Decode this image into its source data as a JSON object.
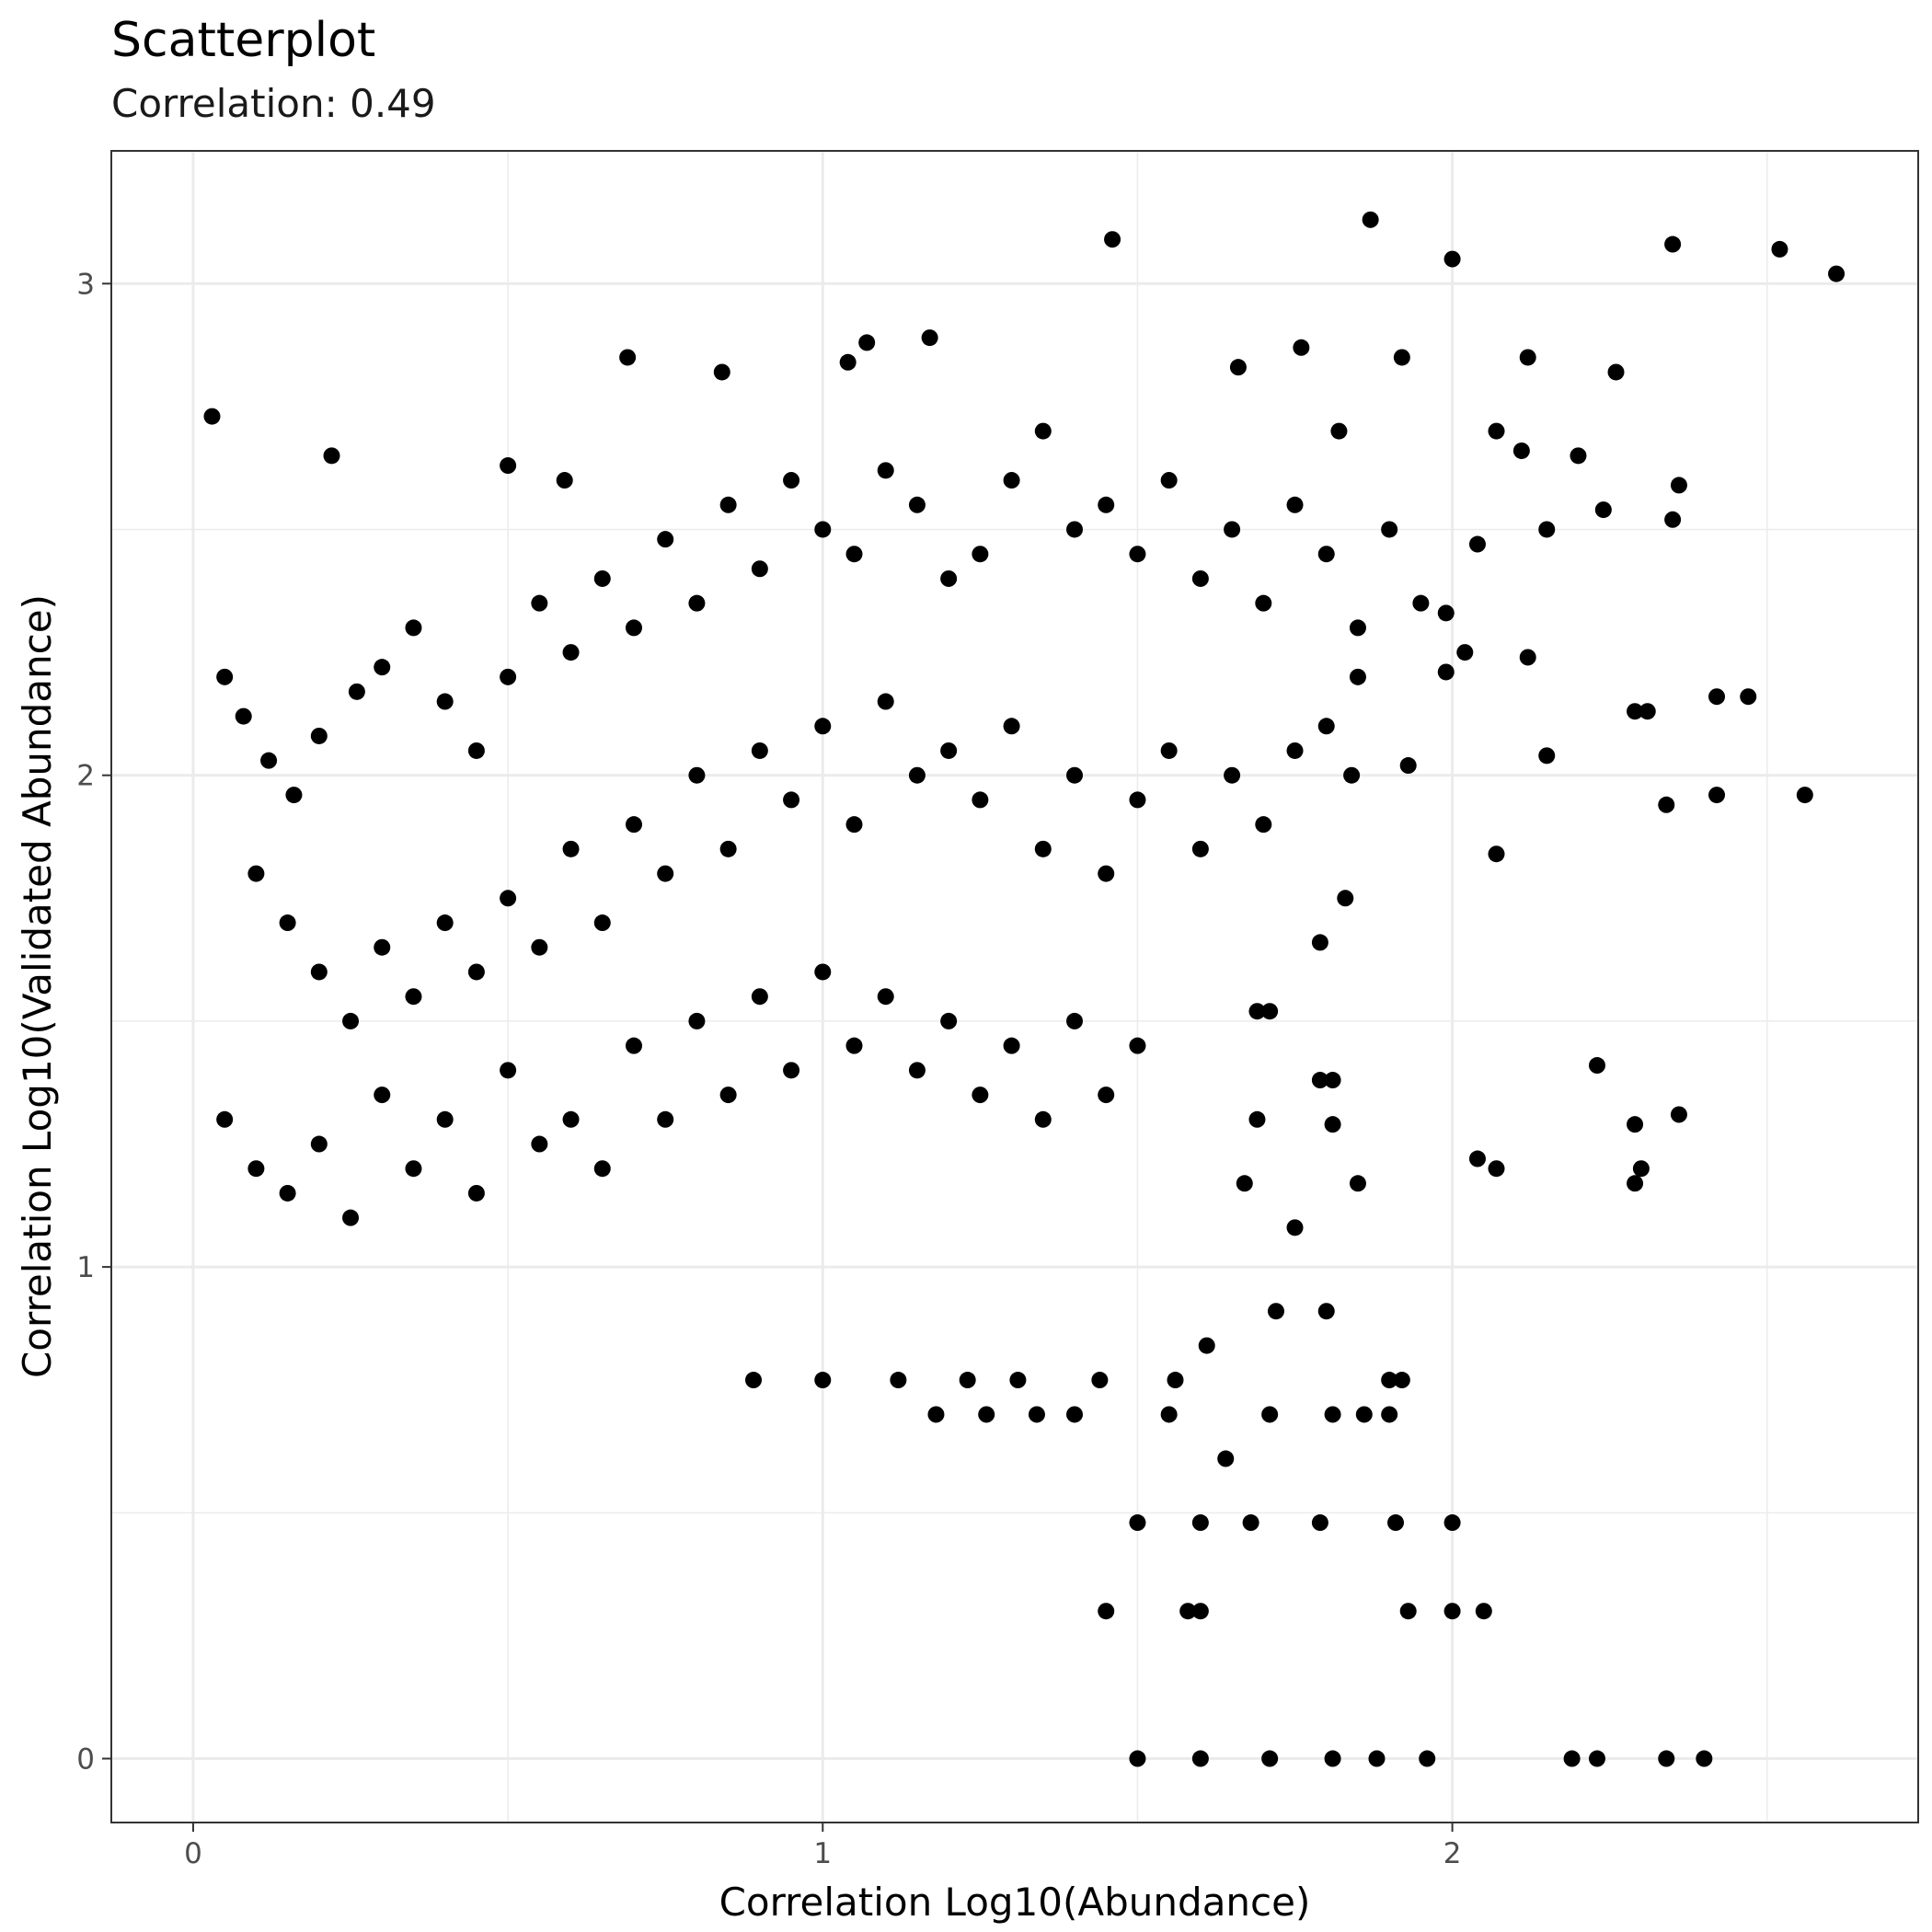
{
  "chart_data": {
    "type": "scatter",
    "title": "Scatterplot",
    "subtitle": "Correlation: 0.49",
    "xlabel": "Correlation Log10(Abundance)",
    "ylabel": "Correlation Log10(Validated Abundance)",
    "xlim": [
      -0.13,
      2.74
    ],
    "ylim": [
      -0.13,
      3.27
    ],
    "x_ticks": [
      0,
      1,
      2
    ],
    "y_ticks": [
      0,
      1,
      2,
      3
    ],
    "x_tick_labels": [
      "0",
      "1",
      "2"
    ],
    "y_tick_labels": [
      "0",
      "1",
      "2",
      "3"
    ],
    "grid": true,
    "legend": "none",
    "point_color": "#000000",
    "points_note": "Representative subset of points read from the figure; the dense central cloud and discrete low-count rows are sampled.",
    "points": [
      [
        1.46,
        3.09
      ],
      [
        1.87,
        3.13
      ],
      [
        2.0,
        3.05
      ],
      [
        2.35,
        3.08
      ],
      [
        2.52,
        3.07
      ],
      [
        2.61,
        3.02
      ],
      [
        0.03,
        2.73
      ],
      [
        0.22,
        2.65
      ],
      [
        0.69,
        2.85
      ],
      [
        0.84,
        2.82
      ],
      [
        1.07,
        2.88
      ],
      [
        1.17,
        2.89
      ],
      [
        1.76,
        2.87
      ],
      [
        1.92,
        2.85
      ],
      [
        2.12,
        2.85
      ],
      [
        2.26,
        2.82
      ],
      [
        1.66,
        2.83
      ],
      [
        1.04,
        2.84
      ],
      [
        0.59,
        2.6
      ],
      [
        0.5,
        2.63
      ],
      [
        1.82,
        2.7
      ],
      [
        2.07,
        2.7
      ],
      [
        2.11,
        2.66
      ],
      [
        2.2,
        2.65
      ],
      [
        2.36,
        2.59
      ],
      [
        2.35,
        2.52
      ],
      [
        2.15,
        2.5
      ],
      [
        2.24,
        2.54
      ],
      [
        2.04,
        2.47
      ],
      [
        1.99,
        2.33
      ],
      [
        2.02,
        2.25
      ],
      [
        1.99,
        2.21
      ],
      [
        2.12,
        2.24
      ],
      [
        2.29,
        2.13
      ],
      [
        2.31,
        2.13
      ],
      [
        2.42,
        2.16
      ],
      [
        2.47,
        2.16
      ],
      [
        2.15,
        2.04
      ],
      [
        2.34,
        1.94
      ],
      [
        2.42,
        1.96
      ],
      [
        2.56,
        1.96
      ],
      [
        2.07,
        1.84
      ],
      [
        1.93,
        2.02
      ],
      [
        1.84,
        2.0
      ],
      [
        1.83,
        1.75
      ],
      [
        1.79,
        1.66
      ],
      [
        2.23,
        1.41
      ],
      [
        2.29,
        1.29
      ],
      [
        2.36,
        1.31
      ],
      [
        2.3,
        1.2
      ],
      [
        2.29,
        1.17
      ],
      [
        2.04,
        1.22
      ],
      [
        2.07,
        1.2
      ],
      [
        1.85,
        1.17
      ],
      [
        1.81,
        1.29
      ],
      [
        1.79,
        1.38
      ],
      [
        1.81,
        1.38
      ],
      [
        1.71,
        1.52
      ],
      [
        1.69,
        1.52
      ],
      [
        1.69,
        1.3
      ],
      [
        1.67,
        1.17
      ],
      [
        1.75,
        1.08
      ],
      [
        1.8,
        0.91
      ],
      [
        1.72,
        0.91
      ],
      [
        1.61,
        0.84
      ],
      [
        1.56,
        0.77
      ],
      [
        1.44,
        0.77
      ],
      [
        1.31,
        0.77
      ],
      [
        1.23,
        0.77
      ],
      [
        1.12,
        0.77
      ],
      [
        1.0,
        0.77
      ],
      [
        0.89,
        0.77
      ],
      [
        1.9,
        0.77
      ],
      [
        1.92,
        0.77
      ],
      [
        1.71,
        0.7
      ],
      [
        1.81,
        0.7
      ],
      [
        1.86,
        0.7
      ],
      [
        1.9,
        0.7
      ],
      [
        1.64,
        0.61
      ],
      [
        1.55,
        0.7
      ],
      [
        1.4,
        0.7
      ],
      [
        1.34,
        0.7
      ],
      [
        1.26,
        0.7
      ],
      [
        1.18,
        0.7
      ],
      [
        2.0,
        0.48
      ],
      [
        1.91,
        0.48
      ],
      [
        1.79,
        0.48
      ],
      [
        1.68,
        0.48
      ],
      [
        1.6,
        0.48
      ],
      [
        1.5,
        0.48
      ],
      [
        1.93,
        0.3
      ],
      [
        2.0,
        0.3
      ],
      [
        2.05,
        0.3
      ],
      [
        1.6,
        0.3
      ],
      [
        1.58,
        0.3
      ],
      [
        1.45,
        0.3
      ],
      [
        2.19,
        0.0
      ],
      [
        2.23,
        0.0
      ],
      [
        2.34,
        0.0
      ],
      [
        2.4,
        0.0
      ],
      [
        1.96,
        0.0
      ],
      [
        1.88,
        0.0
      ],
      [
        1.81,
        0.0
      ],
      [
        1.71,
        0.0
      ],
      [
        1.6,
        0.0
      ],
      [
        1.5,
        0.0
      ],
      [
        0.05,
        2.2
      ],
      [
        0.08,
        2.12
      ],
      [
        0.12,
        2.03
      ],
      [
        0.16,
        1.96
      ],
      [
        0.2,
        2.08
      ],
      [
        0.26,
        2.17
      ],
      [
        0.3,
        2.22
      ],
      [
        0.35,
        2.3
      ],
      [
        0.4,
        2.15
      ],
      [
        0.45,
        2.05
      ],
      [
        0.5,
        2.2
      ],
      [
        0.55,
        2.35
      ],
      [
        0.6,
        2.25
      ],
      [
        0.65,
        2.4
      ],
      [
        0.7,
        2.3
      ],
      [
        0.75,
        2.48
      ],
      [
        0.8,
        2.35
      ],
      [
        0.85,
        2.55
      ],
      [
        0.9,
        2.42
      ],
      [
        0.95,
        2.6
      ],
      [
        1.0,
        2.5
      ],
      [
        1.05,
        2.45
      ],
      [
        1.1,
        2.62
      ],
      [
        1.15,
        2.55
      ],
      [
        1.2,
        2.4
      ],
      [
        1.25,
        2.45
      ],
      [
        1.3,
        2.6
      ],
      [
        1.35,
        2.7
      ],
      [
        1.4,
        2.5
      ],
      [
        1.45,
        2.55
      ],
      [
        1.5,
        2.45
      ],
      [
        1.55,
        2.6
      ],
      [
        1.6,
        2.4
      ],
      [
        1.65,
        2.5
      ],
      [
        1.7,
        2.35
      ],
      [
        1.75,
        2.55
      ],
      [
        1.8,
        2.45
      ],
      [
        1.85,
        2.3
      ],
      [
        1.9,
        2.5
      ],
      [
        1.95,
        2.35
      ],
      [
        0.1,
        1.8
      ],
      [
        0.15,
        1.7
      ],
      [
        0.2,
        1.6
      ],
      [
        0.25,
        1.5
      ],
      [
        0.3,
        1.65
      ],
      [
        0.35,
        1.55
      ],
      [
        0.4,
        1.7
      ],
      [
        0.45,
        1.6
      ],
      [
        0.5,
        1.75
      ],
      [
        0.55,
        1.65
      ],
      [
        0.6,
        1.85
      ],
      [
        0.65,
        1.7
      ],
      [
        0.7,
        1.9
      ],
      [
        0.75,
        1.8
      ],
      [
        0.8,
        2.0
      ],
      [
        0.85,
        1.85
      ],
      [
        0.9,
        2.05
      ],
      [
        0.95,
        1.95
      ],
      [
        1.0,
        2.1
      ],
      [
        1.05,
        1.9
      ],
      [
        1.1,
        2.15
      ],
      [
        1.15,
        2.0
      ],
      [
        1.2,
        2.05
      ],
      [
        1.25,
        1.95
      ],
      [
        1.3,
        2.1
      ],
      [
        1.35,
        1.85
      ],
      [
        1.4,
        2.0
      ],
      [
        1.45,
        1.8
      ],
      [
        1.5,
        1.95
      ],
      [
        1.55,
        2.05
      ],
      [
        1.6,
        1.85
      ],
      [
        1.65,
        2.0
      ],
      [
        1.7,
        1.9
      ],
      [
        1.75,
        2.05
      ],
      [
        1.8,
        2.1
      ],
      [
        1.85,
        2.2
      ],
      [
        0.05,
        1.3
      ],
      [
        0.1,
        1.2
      ],
      [
        0.15,
        1.15
      ],
      [
        0.2,
        1.25
      ],
      [
        0.25,
        1.1
      ],
      [
        0.3,
        1.35
      ],
      [
        0.35,
        1.2
      ],
      [
        0.4,
        1.3
      ],
      [
        0.45,
        1.15
      ],
      [
        0.5,
        1.4
      ],
      [
        0.55,
        1.25
      ],
      [
        0.6,
        1.3
      ],
      [
        0.65,
        1.2
      ],
      [
        0.7,
        1.45
      ],
      [
        0.75,
        1.3
      ],
      [
        0.8,
        1.5
      ],
      [
        0.85,
        1.35
      ],
      [
        0.9,
        1.55
      ],
      [
        0.95,
        1.4
      ],
      [
        1.0,
        1.6
      ],
      [
        1.05,
        1.45
      ],
      [
        1.1,
        1.55
      ],
      [
        1.15,
        1.4
      ],
      [
        1.2,
        1.5
      ],
      [
        1.25,
        1.35
      ],
      [
        1.3,
        1.45
      ],
      [
        1.35,
        1.3
      ],
      [
        1.4,
        1.5
      ],
      [
        1.45,
        1.35
      ],
      [
        1.5,
        1.45
      ]
    ]
  }
}
